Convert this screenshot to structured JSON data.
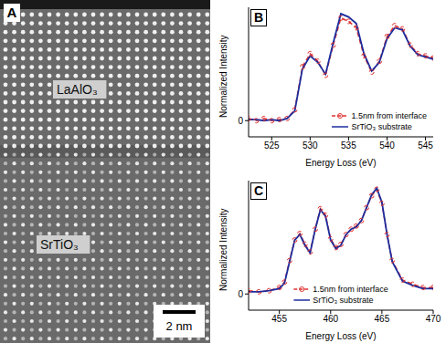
{
  "chart_data": [
    {
      "type": "image",
      "panel": "A",
      "labels": [
        "LaAlO₃",
        "SrTiO₃"
      ],
      "scale_bar": "2 nm"
    },
    {
      "type": "line",
      "panel": "B",
      "xlabel": "Energy Loss (eV)",
      "ylabel": "Normalized Intensity",
      "xlim": [
        522,
        546
      ],
      "xticks": [
        525,
        530,
        535,
        540,
        545
      ],
      "ylim": [
        -0.15,
        1.05
      ],
      "yticks": [
        0
      ],
      "legend": "lower right",
      "x": [
        522,
        523,
        524,
        525,
        526,
        527,
        528,
        529,
        530,
        531,
        532,
        533,
        534,
        535,
        536,
        537,
        538,
        539,
        540,
        541,
        542,
        543,
        544,
        545,
        546
      ],
      "series": [
        {
          "name": "1.5nm from interface",
          "color": "#e03030",
          "line_style": "dashed",
          "marker": "circle",
          "values": [
            0.02,
            0.0,
            0.02,
            0.0,
            0.01,
            0.02,
            0.1,
            0.5,
            0.62,
            0.55,
            0.42,
            0.7,
            0.95,
            0.92,
            0.86,
            0.6,
            0.45,
            0.55,
            0.78,
            0.88,
            0.85,
            0.7,
            0.62,
            0.6,
            0.58
          ]
        },
        {
          "name": "SrTiO₃ substrate",
          "color": "#1c2c9c",
          "line_style": "solid",
          "marker": "none",
          "values": [
            0.01,
            0.01,
            0.0,
            0.01,
            0.0,
            0.02,
            0.09,
            0.48,
            0.6,
            0.54,
            0.43,
            0.72,
            0.99,
            0.96,
            0.9,
            0.62,
            0.46,
            0.54,
            0.76,
            0.86,
            0.84,
            0.69,
            0.61,
            0.59,
            0.57
          ]
        }
      ]
    },
    {
      "type": "line",
      "panel": "C",
      "xlabel": "Energy Loss (eV)",
      "ylabel": "Normalized Intensity",
      "xlim": [
        452,
        470
      ],
      "xticks": [
        455,
        460,
        465,
        470
      ],
      "ylim": [
        -0.15,
        1.05
      ],
      "yticks": [
        0
      ],
      "legend": "lower center",
      "x": [
        452,
        453,
        454,
        455,
        455.5,
        456,
        456.5,
        457,
        457.5,
        458,
        458.5,
        459,
        459.5,
        460,
        460.5,
        461,
        461.5,
        462,
        462.5,
        463,
        463.5,
        464,
        464.5,
        465,
        465.5,
        466,
        467,
        468,
        469,
        470
      ],
      "series": [
        {
          "name": "1.5nm from interface",
          "color": "#e03030",
          "line_style": "dashed",
          "marker": "circle",
          "values": [
            0.03,
            0.02,
            0.03,
            0.06,
            0.11,
            0.31,
            0.5,
            0.56,
            0.46,
            0.39,
            0.6,
            0.79,
            0.73,
            0.51,
            0.43,
            0.46,
            0.55,
            0.6,
            0.63,
            0.68,
            0.8,
            0.91,
            0.97,
            0.84,
            0.55,
            0.31,
            0.13,
            0.09,
            0.06,
            0.06
          ]
        },
        {
          "name": "SrTiO₃ substrate",
          "color": "#1c2c9c",
          "line_style": "solid",
          "marker": "none",
          "values": [
            0.02,
            0.02,
            0.03,
            0.05,
            0.1,
            0.3,
            0.5,
            0.55,
            0.45,
            0.38,
            0.6,
            0.78,
            0.72,
            0.5,
            0.42,
            0.45,
            0.55,
            0.6,
            0.62,
            0.68,
            0.8,
            0.92,
            0.98,
            0.85,
            0.55,
            0.3,
            0.12,
            0.08,
            0.05,
            0.05
          ]
        }
      ]
    }
  ]
}
